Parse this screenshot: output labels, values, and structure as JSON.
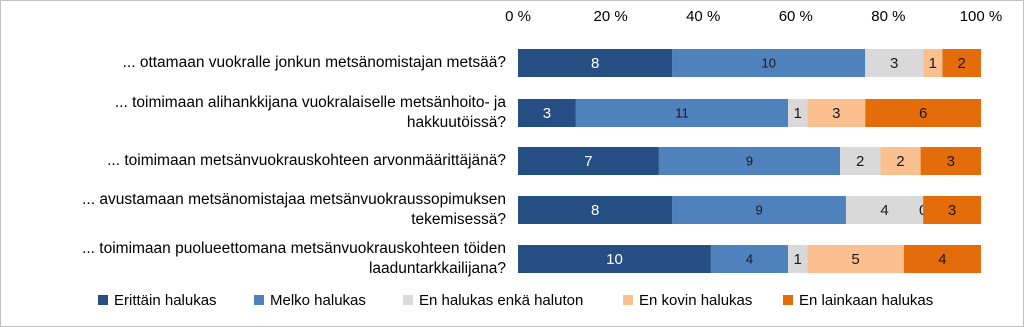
{
  "chart_data": {
    "type": "bar",
    "orientation": "horizontal",
    "stacking": "percent",
    "categories": [
      "... ottamaan vuokralle jonkun metsänomistajan metsää?",
      "... toimimaan alihankkijana vuokralaiselle metsänhoito- ja hakkuutöissä?",
      "... toimimaan metsänvuokrauskohteen arvonmäärittäjänä?",
      "... avustamaan metsänomistajaa metsänvuokraussopimuksen tekemisessä?",
      "... toimimaan puolueettomana metsänvuokrauskohteen töiden laaduntarkkailijana?"
    ],
    "series": [
      {
        "name": "Erittäin halukas",
        "color": "#254f82",
        "label_color": "#ffffff",
        "values": [
          8,
          3,
          7,
          8,
          10
        ]
      },
      {
        "name": "Melko halukas",
        "color": "#4f81bd",
        "label_color": "#1a1a1a",
        "values": [
          10,
          11,
          9,
          9,
          4
        ]
      },
      {
        "name": "En halukas enkä haluton",
        "color": "#d9d9d9",
        "label_color": "#1a1a1a",
        "values": [
          3,
          1,
          2,
          4,
          1
        ]
      },
      {
        "name": "En kovin halukas",
        "color": "#fac090",
        "label_color": "#1a1a1a",
        "values": [
          1,
          3,
          2,
          0,
          5
        ]
      },
      {
        "name": "En lainkaan halukas",
        "color": "#e46c0a",
        "label_color": "#1a1a1a",
        "values": [
          2,
          6,
          3,
          3,
          4
        ]
      }
    ],
    "xlim": [
      0,
      100
    ],
    "xticks": [
      {
        "value": 0,
        "label": "0 %"
      },
      {
        "value": 20,
        "label": "20 %"
      },
      {
        "value": 40,
        "label": "40 %"
      },
      {
        "value": 60,
        "label": "60 %"
      },
      {
        "value": 80,
        "label": "80 %"
      },
      {
        "value": 100,
        "label": "100 %"
      }
    ],
    "axis_position": "top",
    "grid": false,
    "legend": "bottom"
  }
}
